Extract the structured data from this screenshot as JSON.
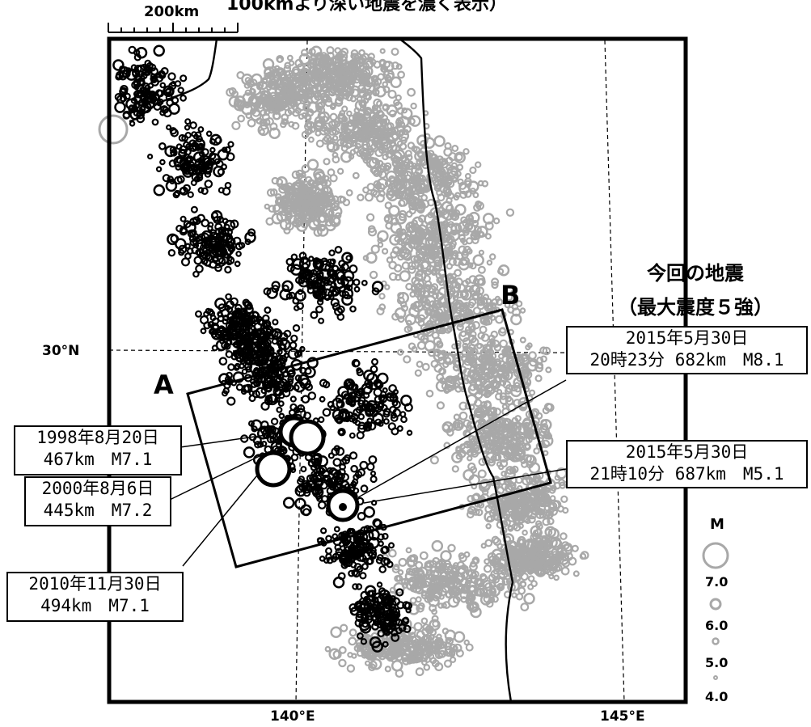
{
  "header": {
    "caption": "100kmより深い地震を濃く表示）",
    "scale_label": "200km"
  },
  "axes": {
    "lon_labels": [
      "140°E",
      "145°E"
    ],
    "lat_labels": [
      "30°N"
    ]
  },
  "section": {
    "point_a": "A",
    "point_b": "B"
  },
  "current_event": {
    "title": "今回の地震",
    "subtitle": "（最大震度５強）"
  },
  "annotations": [
    {
      "date": "2015年5月30日",
      "detail": "20時23分 682km　M8.1"
    },
    {
      "date": "2015年5月30日",
      "detail": "21時10分 687km　M5.1"
    },
    {
      "date": "1998年8月20日",
      "detail": "467km　M7.1"
    },
    {
      "date": "2000年8月6日",
      "detail": "445km　M7.2"
    },
    {
      "date": "2010年11月30日",
      "detail": "494km　M7.1"
    }
  ],
  "legend": {
    "title": "M",
    "levels": [
      "7.0",
      "6.0",
      "5.0",
      "4.0"
    ]
  },
  "colors": {
    "deep": "#000000",
    "shallow": "#a8a8a8",
    "frame": "#000000"
  }
}
